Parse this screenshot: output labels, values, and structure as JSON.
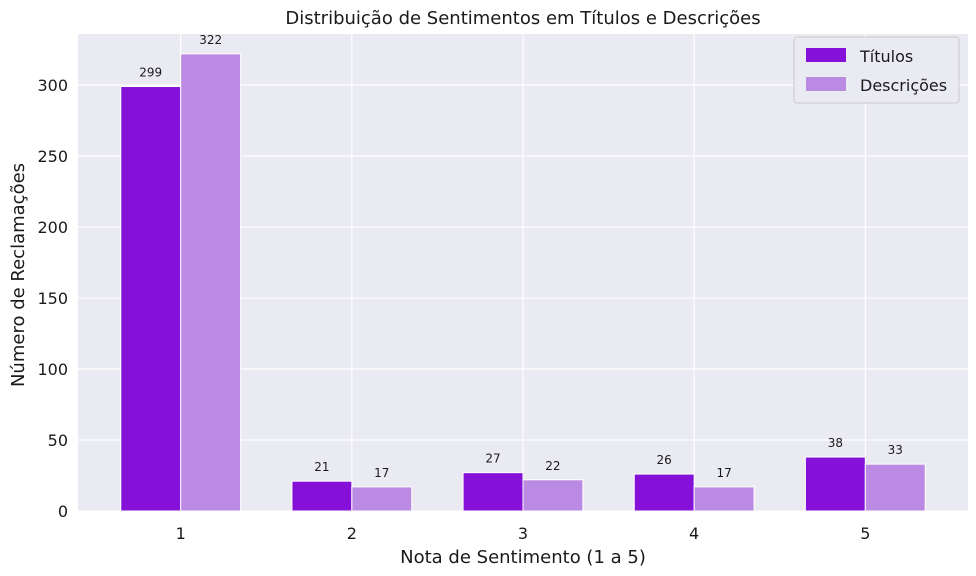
{
  "chart_data": {
    "type": "bar",
    "title": "Distribuição de Sentimentos em Títulos e Descrições",
    "xlabel": "Nota de Sentimento (1 a 5)",
    "ylabel": "Número de Reclamações",
    "categories": [
      "1",
      "2",
      "3",
      "4",
      "5"
    ],
    "series": [
      {
        "name": "Títulos",
        "values": [
          299,
          21,
          27,
          26,
          38
        ],
        "color": "#8510d8"
      },
      {
        "name": "Descrições",
        "values": [
          322,
          17,
          22,
          17,
          33
        ],
        "color": "#bb8ae2"
      }
    ],
    "ylim": [
      0,
      336
    ],
    "yticks": [
      0,
      50,
      100,
      150,
      200,
      250,
      300
    ],
    "grid": true,
    "legend": "top-right",
    "background": "#eaeaf2",
    "grid_color": "#ffffff"
  }
}
